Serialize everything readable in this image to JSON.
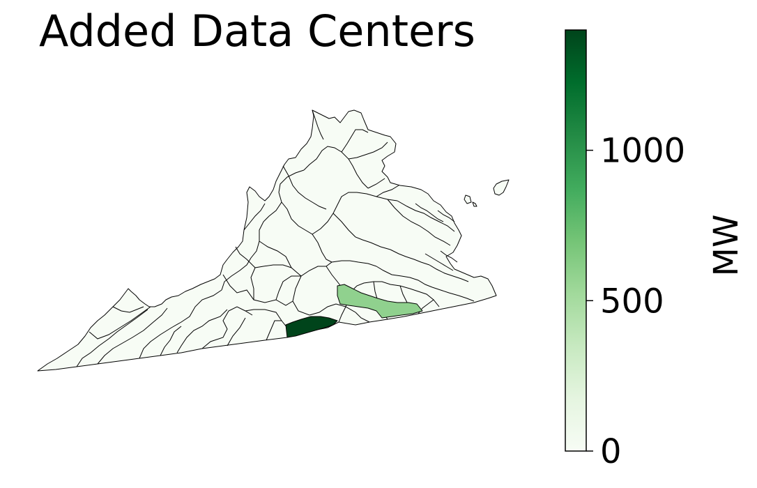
{
  "title": "Added Data Centers",
  "colorbar": {
    "label": "MW",
    "min": 0,
    "max": 1400,
    "ticks": [
      0,
      500,
      1000
    ],
    "tick_labels": [
      "0",
      "500",
      "1000"
    ],
    "colormap": "Greens",
    "color_low": "#f7fcf5",
    "color_high": "#00441b"
  },
  "map_data": {
    "outline_color": "#000000",
    "background_region_value": 0,
    "highlighted_regions": [
      {
        "id": "southern-border-region",
        "value": 1400
      },
      {
        "id": "southeast-inland-region",
        "value": 560
      }
    ]
  }
}
